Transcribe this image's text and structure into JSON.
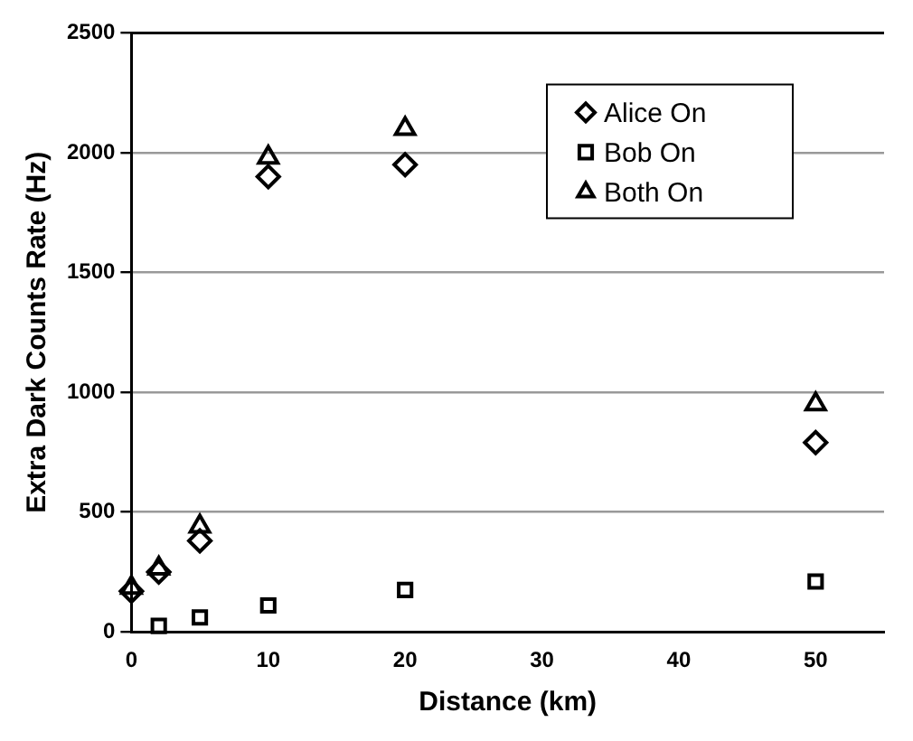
{
  "chart_data": {
    "type": "scatter",
    "xlabel": "Distance (km)",
    "ylabel": "Extra Dark Counts Rate (Hz)",
    "series": [
      {
        "name": "Alice On",
        "color": "#000000",
        "marker": "diamond",
        "x": [
          0,
          2,
          5,
          10,
          20,
          50
        ],
        "values": [
          170,
          250,
          380,
          1900,
          1950,
          790
        ]
      },
      {
        "name": "Bob On",
        "color": "#000000",
        "marker": "square",
        "x": [
          2,
          5,
          10,
          20,
          50
        ],
        "values": [
          25,
          60,
          110,
          175,
          210
        ]
      },
      {
        "name": "Both On",
        "color": "#000000",
        "marker": "triangle",
        "x": [
          0,
          2,
          5,
          10,
          20,
          50
        ],
        "values": [
          185,
          265,
          440,
          1980,
          2100,
          950
        ]
      }
    ],
    "xlim": [
      0,
      55
    ],
    "xticks": [
      0,
      10,
      20,
      30,
      40,
      50
    ],
    "ylim": [
      0,
      2500
    ],
    "yticks": [
      0,
      500,
      1000,
      1500,
      2000,
      2500
    ],
    "grid": "y",
    "legend": "top right"
  }
}
